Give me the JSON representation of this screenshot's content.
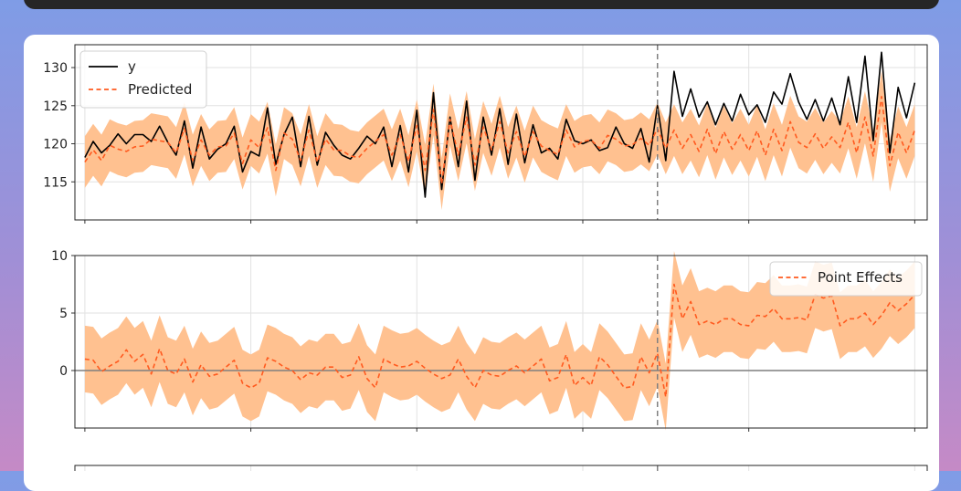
{
  "chart_data": [
    {
      "type": "line",
      "panel": "original",
      "ylim": [
        110,
        133
      ],
      "yticks": [
        115,
        120,
        125,
        130
      ],
      "intervention_x": 69,
      "grid": true,
      "legend": {
        "placement": "top-left",
        "entries": [
          "y",
          "Predicted"
        ]
      },
      "series": [
        {
          "name": "y",
          "color": "#000000",
          "style": "solid",
          "values": [
            118.2,
            120.3,
            118.8,
            119.8,
            121.3,
            120.0,
            121.2,
            121.2,
            120.3,
            122.3,
            120.2,
            118.5,
            123.0,
            116.8,
            122.2,
            118.0,
            119.3,
            120.0,
            122.3,
            116.3,
            119.0,
            118.4,
            124.7,
            117.3,
            121.2,
            123.5,
            117.0,
            123.6,
            117.2,
            121.5,
            119.8,
            118.5,
            118.0,
            119.4,
            121.0,
            120.0,
            122.2,
            117.0,
            122.4,
            116.3,
            124.4,
            113.0,
            126.7,
            114.0,
            123.5,
            117.0,
            125.6,
            115.2,
            123.5,
            118.5,
            124.6,
            117.3,
            123.9,
            117.5,
            122.5,
            118.8,
            119.4,
            118.0,
            123.2,
            120.4,
            120.0,
            120.5,
            119.1,
            119.5,
            122.2,
            120.0,
            119.4,
            122.0,
            117.6,
            125.0,
            117.8,
            129.5,
            123.6,
            127.2,
            123.5,
            125.5,
            122.5,
            125.3,
            123.0,
            126.5,
            123.8,
            125.1,
            122.8,
            126.8,
            125.2,
            129.2,
            125.5,
            123.2,
            125.8,
            123.0,
            126.0,
            122.5,
            128.8,
            122.8,
            131.5,
            120.4,
            132.0,
            118.8,
            127.4,
            123.4,
            128.0
          ]
        },
        {
          "name": "Predicted",
          "color": "#ff5a1f",
          "style": "dashed",
          "values": [
            117.6,
            119.2,
            117.8,
            119.8,
            119.3,
            119.0,
            119.6,
            119.7,
            120.6,
            120.4,
            120.2,
            118.8,
            122.0,
            117.8,
            120.5,
            118.5,
            119.6,
            119.7,
            121.4,
            117.4,
            120.5,
            119.5,
            122.1,
            116.5,
            121.4,
            120.6,
            117.8,
            121.8,
            117.6,
            120.6,
            119.2,
            119.1,
            118.4,
            118.2,
            119.4,
            120.3,
            121.2,
            118.5,
            121.2,
            117.7,
            122.4,
            116.5,
            124.5,
            114.7,
            123.2,
            118.5,
            123.5,
            117.2,
            122.2,
            119.2,
            122.9,
            118.8,
            121.6,
            118.3,
            121.6,
            119.7,
            119.1,
            118.6,
            121.8,
            119.6,
            120.3,
            120.5,
            119.4,
            121.1,
            120.6,
            119.7,
            119.9,
            120.7,
            119.8,
            122.0,
            119.4,
            121.8,
            119.4,
            121.2,
            119.0,
            121.9,
            118.7,
            121.6,
            119.3,
            121.2,
            119.1,
            121.7,
            118.5,
            121.9,
            119.1,
            122.9,
            120.2,
            119.5,
            121.3,
            119.4,
            120.9,
            119.5,
            122.8,
            118.8,
            123.5,
            118.4,
            126.2,
            117.1,
            121.5,
            118.8,
            121.8
          ]
        }
      ],
      "band": {
        "color": "#ffc190",
        "half_width": 3.4
      }
    },
    {
      "type": "line",
      "panel": "pointwise",
      "ylim": [
        -5,
        10
      ],
      "yticks": [
        0,
        5,
        10
      ],
      "intervention_x": 69,
      "grid": true,
      "zero_line": true,
      "legend": {
        "placement": "top-right",
        "entries": [
          "Point Effects"
        ]
      },
      "series": [
        {
          "name": "Point Effects",
          "color": "#ff5a1f",
          "style": "dashed",
          "values": [
            1.0,
            0.9,
            -0.1,
            0.4,
            0.8,
            1.8,
            0.8,
            1.4,
            -0.3,
            1.9,
            0.0,
            -0.3,
            1.0,
            -1.0,
            0.5,
            -0.5,
            -0.3,
            0.3,
            0.9,
            -1.1,
            -1.5,
            -1.1,
            1.1,
            0.8,
            0.3,
            0.0,
            -0.8,
            -0.2,
            -0.4,
            0.3,
            0.3,
            -0.6,
            -0.4,
            1.2,
            -0.7,
            -1.5,
            1.0,
            0.6,
            0.3,
            0.4,
            0.8,
            0.2,
            -0.3,
            -0.7,
            -0.4,
            1.0,
            -0.5,
            -1.5,
            0.0,
            -0.4,
            -0.5,
            0.0,
            0.4,
            -0.2,
            0.4,
            1.0,
            -0.9,
            -0.6,
            1.4,
            -1.3,
            -0.6,
            -1.3,
            1.2,
            0.5,
            -0.5,
            -1.5,
            -1.4,
            1.2,
            -0.2,
            1.5,
            -2.3,
            7.5,
            4.5,
            6.0,
            4.0,
            4.3,
            4.0,
            4.5,
            4.5,
            4.0,
            3.9,
            4.8,
            4.7,
            5.4,
            4.5,
            4.5,
            4.6,
            4.4,
            6.6,
            6.3,
            6.5,
            3.9,
            4.5,
            4.5,
            5.0,
            4.0,
            4.8,
            5.9,
            5.2,
            5.8,
            6.6
          ]
        }
      ],
      "band": {
        "color": "#ffc190",
        "half_width": 2.9
      }
    },
    {
      "type": "line",
      "panel": "cumulative"
    }
  ]
}
